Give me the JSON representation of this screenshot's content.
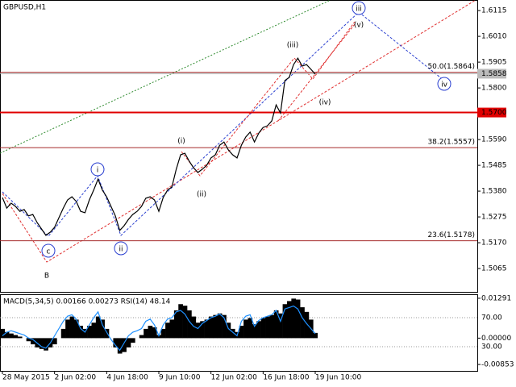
{
  "chart_data": [
    {
      "type": "line",
      "title": "GBPUSD,H1",
      "x": [
        0,
        1,
        2,
        3,
        4,
        5,
        6,
        7,
        8,
        9,
        10,
        11,
        12,
        13,
        14,
        15,
        16,
        17,
        18,
        19,
        20,
        21,
        22,
        23,
        24,
        25,
        26,
        27,
        28,
        29,
        30,
        31,
        32,
        33,
        34,
        35,
        36,
        37,
        38,
        39,
        40,
        41,
        42,
        43,
        44,
        45,
        46,
        47,
        48,
        49,
        50,
        51,
        52,
        53,
        54,
        55,
        56,
        57,
        58,
        59,
        60,
        61,
        62,
        63,
        64,
        65,
        66,
        67,
        68,
        69,
        70,
        71,
        72
      ],
      "series": [
        {
          "color": "#000000",
          "values": [
            1.5354,
            1.5311,
            1.5331,
            1.5318,
            1.5298,
            1.5305,
            1.5279,
            1.5285,
            1.5252,
            1.5226,
            1.52,
            1.5213,
            1.5233,
            1.5272,
            1.5311,
            1.5344,
            1.5357,
            1.5338,
            1.5298,
            1.5292,
            1.5344,
            1.5384,
            1.5429,
            1.5384,
            1.5357,
            1.5318,
            1.5279,
            1.522,
            1.5239,
            1.5265,
            1.5285,
            1.5298,
            1.5318,
            1.5351,
            1.5357,
            1.5344,
            1.5298,
            1.5354,
            1.5384,
            1.5397,
            1.5469,
            1.5528,
            1.5534,
            1.5502,
            1.5475,
            1.5456,
            1.5469,
            1.5485,
            1.5515,
            1.5528,
            1.5567,
            1.558,
            1.5548,
            1.5528,
            1.5515,
            1.5567,
            1.56,
            1.562,
            1.558,
            1.5616,
            1.5639,
            1.5646,
            1.5666,
            1.5731,
            1.5698,
            1.583,
            1.5843,
            1.5895,
            1.5921,
            1.5889,
            1.5895,
            1.5876,
            1.5856
          ]
        }
      ],
      "xlim": [
        -0.56,
        109.3
      ],
      "xticks": [
        {
          "value": 0,
          "label": "28 May 2015"
        },
        {
          "value": 12,
          "label": "2 Jun 02:00"
        },
        {
          "value": 24,
          "label": "4 Jun 18:00"
        },
        {
          "value": 36,
          "label": "9 Jun 10:00"
        },
        {
          "value": 48,
          "label": "12 Jun 02:00"
        },
        {
          "value": 60,
          "label": "16 Jun 18:00"
        },
        {
          "value": 72,
          "label": "19 Jun 10:00"
        }
      ],
      "ylim": [
        1.497,
        1.6158
      ],
      "yticks": [
        1.6115,
        {
          "value": 1.601,
          "label": "1.6010"
        },
        1.5905,
        {
          "value": 1.58,
          "label": "1.5800"
        },
        {
          "value": 1.559,
          "label": "1.5590"
        },
        1.5485,
        {
          "value": 1.538,
          "label": "1.5380"
        },
        1.5275,
        {
          "value": 1.517,
          "label": "1.5170"
        },
        1.5065
      ],
      "fib_levels": [
        {
          "value": 1.5864,
          "label": "50.0(1.5864)"
        },
        {
          "value": 1.5557,
          "label": "38.2(1.5557)"
        },
        {
          "value": 1.5178,
          "label": "23.6(1.5178)"
        }
      ],
      "fib_color": "#a52a2a",
      "level": {
        "value": 1.57,
        "label": "1.5700",
        "color": "#e00000"
      },
      "last_price": 1.5858,
      "annotations": [
        "(i)",
        "(ii)",
        "(iii)",
        "(iv)",
        "(v)",
        "i",
        "ii",
        "iii",
        "iv",
        "c",
        "B"
      ]
    },
    {
      "type": "bar",
      "title": "MACD(5,34,5) 0.00166 0.00273 RSI(14) 48.14",
      "xlim": [
        -0.56,
        109.3
      ],
      "ylim": [
        -0.0106,
        0.0142
      ],
      "yticks": [
        0.01291,
        {
          "value": 0,
          "label": "0.00000"
        },
        -0.00853
      ],
      "y2lim": [
        -3.3,
        102.2
      ],
      "y2ticks": [
        {
          "value": 70,
          "label": "70.00"
        },
        {
          "value": 30,
          "label": "30.00"
        }
      ],
      "series": [
        {
          "color": "#000000",
          "values": [
            0.003,
            0.002,
            0.0015,
            0.001,
            0.0005,
            0,
            -0.001,
            -0.002,
            -0.003,
            -0.0035,
            -0.004,
            -0.003,
            -0.002,
            0,
            0.003,
            0.006,
            0.007,
            0.006,
            0.004,
            0.003,
            0.004,
            0.005,
            0.007,
            0.006,
            0.003,
            0,
            -0.003,
            -0.005,
            -0.0045,
            -0.003,
            -0.0015,
            0,
            0.001,
            0.003,
            0.004,
            0.0035,
            0.001,
            0.003,
            0.005,
            0.006,
            0.009,
            0.011,
            0.0105,
            0.009,
            0.007,
            0.005,
            0.0055,
            0.006,
            0.007,
            0.0075,
            0.008,
            0.0075,
            0.005,
            0.003,
            0.002,
            0.004,
            0.006,
            0.0065,
            0.0045,
            0.0055,
            0.0065,
            0.007,
            0.0075,
            0.009,
            0.008,
            0.011,
            0.012,
            0.0128,
            0.0125,
            0.01,
            0.0085,
            0.006,
            0.0017
          ]
        },
        {
          "type": "line",
          "axis": "y2",
          "color": "#1e90ff",
          "values": [
            45,
            50,
            52,
            50,
            48,
            46,
            42,
            40,
            35,
            30,
            28,
            35,
            45,
            55,
            65,
            72,
            74,
            68,
            55,
            50,
            60,
            70,
            78,
            60,
            50,
            40,
            32,
            25,
            35,
            45,
            50,
            52,
            55,
            65,
            68,
            60,
            45,
            60,
            68,
            70,
            78,
            80,
            75,
            65,
            58,
            55,
            62,
            66,
            70,
            72,
            75,
            70,
            55,
            50,
            45,
            65,
            72,
            74,
            58,
            66,
            70,
            72,
            74,
            80,
            65,
            82,
            84,
            86,
            82,
            70,
            62,
            55,
            48
          ]
        }
      ]
    }
  ]
}
